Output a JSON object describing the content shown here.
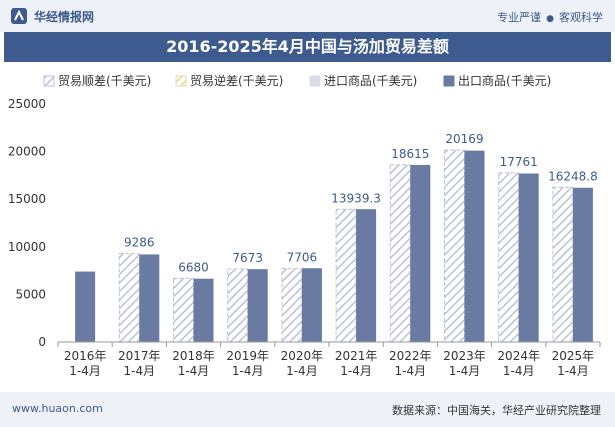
{
  "header": {
    "brand_name": "华经情报网",
    "slogan_left": "专业严谨",
    "slogan_sep": "●",
    "slogan_right": "客观科学"
  },
  "title": "2016-2025年4月中国与汤加贸易差额",
  "footer": {
    "url": "www.huaon.com",
    "source": "数据来源：中国海关，华经产业研究院整理"
  },
  "colors": {
    "export": "#6a7ba3",
    "import": "#d8dde6",
    "surplus_hatch": "#b9c3d6",
    "deficit_hatch": "#e8d9a0",
    "title_bg": "#3d5b8f"
  },
  "chart_data": {
    "type": "bar",
    "categories": [
      "2016年\n1-4月",
      "2017年\n1-4月",
      "2018年\n1-4月",
      "2019年\n1-4月",
      "2020年\n1-4月",
      "2021年\n1-4月",
      "2022年\n1-4月",
      "2023年\n1-4月",
      "2024年\n1-4月",
      "2025年\n1-4月"
    ],
    "series": [
      {
        "name": "贸易顺差(千美元)",
        "values": [
          null,
          9286,
          6680,
          7673,
          7706,
          13939.3,
          18615,
          20169,
          17761,
          16248.8
        ],
        "labels": [
          "",
          "9286",
          "6680",
          "7673",
          "7706",
          "13939.3",
          "18615",
          "20169",
          "17761",
          "16248.8"
        ]
      },
      {
        "name": "贸易逆差(千美元)",
        "values": [
          null,
          null,
          null,
          null,
          null,
          null,
          null,
          null,
          null,
          null
        ]
      },
      {
        "name": "进口商品(千美元)",
        "values": [
          null,
          null,
          null,
          null,
          null,
          null,
          null,
          null,
          null,
          null
        ]
      },
      {
        "name": "出口商品(千美元)",
        "values": [
          7400,
          9200,
          6650,
          7650,
          7750,
          13950,
          18600,
          20100,
          17700,
          16200
        ]
      }
    ],
    "ylim": [
      0,
      25000
    ],
    "yticks": [
      0,
      5000,
      10000,
      15000,
      20000,
      25000
    ],
    "legend_position": "top",
    "grid": false
  }
}
